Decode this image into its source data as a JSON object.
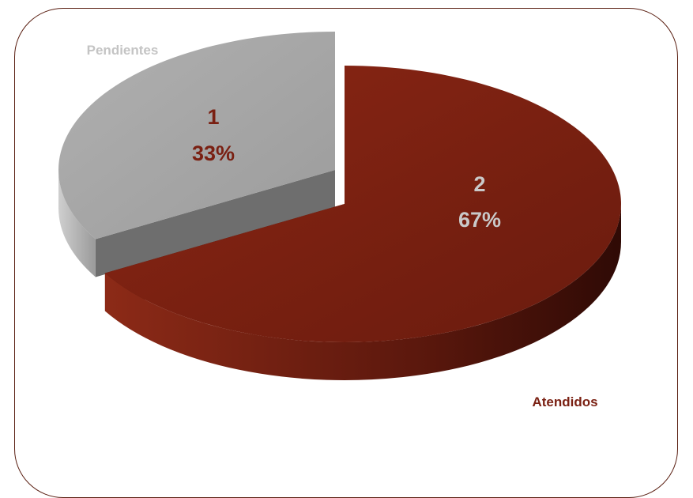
{
  "chart_data": {
    "type": "pie",
    "title": "",
    "legend": "none",
    "slices": [
      {
        "category": "Atendidos",
        "value": 2,
        "percent": "67%",
        "color": "#7a2012",
        "label_color": "#c9c9c9",
        "category_color": "#7a2012"
      },
      {
        "category": "Pendientes",
        "value": 1,
        "percent": "33%",
        "color": "#a6a6a6",
        "label_color": "#7a2012",
        "category_color": "#c4c4c4"
      }
    ]
  },
  "colors": {
    "border": "#5a1f12",
    "background": "#ffffff"
  }
}
